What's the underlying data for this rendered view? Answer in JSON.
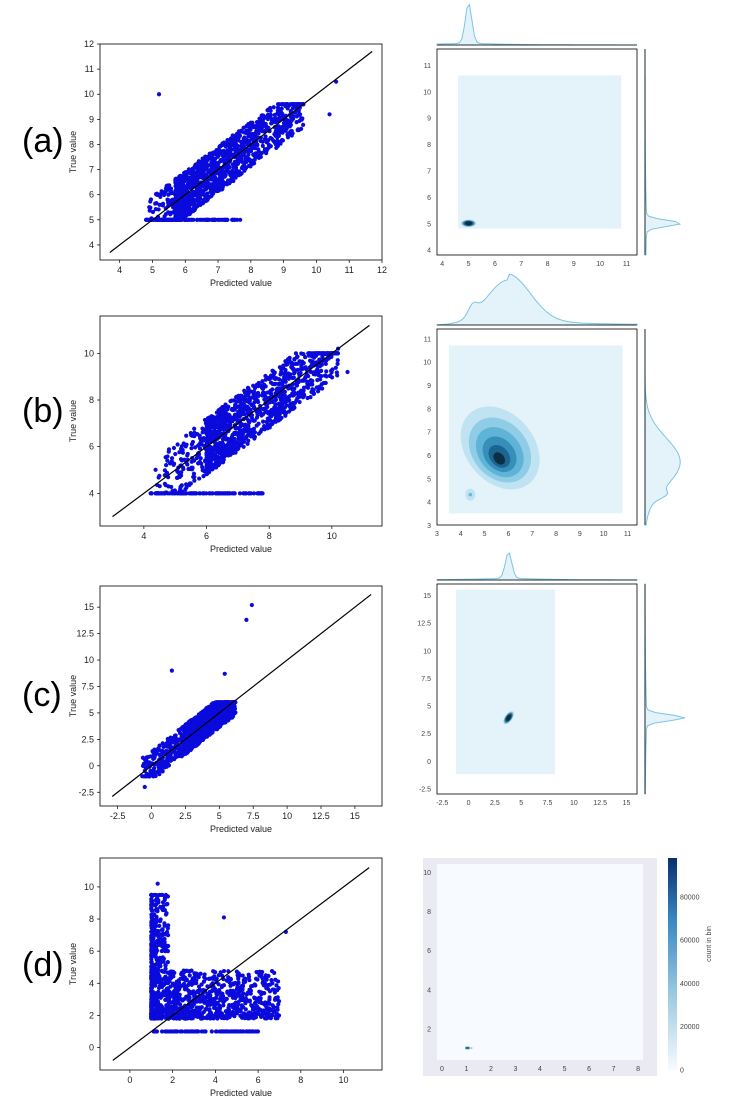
{
  "panel_labels": [
    "(a)",
    "(b)",
    "(c)",
    "(d)"
  ],
  "colors": {
    "scatter_point": "#0a0adc",
    "identity_line": "#000000",
    "kde_fill": "#e4f3fa",
    "kde_marginal_stroke": "#7ec4e0",
    "kde_dense": "#0b2f45",
    "hexbin_bg": "#eaeaf2",
    "hexbin_low": "#f7fbff",
    "hexbin_high": "#08306b"
  },
  "chart_data": [
    {
      "type": "scatter",
      "panel": "(a)",
      "xlabel": "Predicted value",
      "ylabel": "True value",
      "xlim": [
        3.4,
        12.0
      ],
      "ylim": [
        3.4,
        12.0
      ],
      "xticks": [
        4,
        5,
        6,
        7,
        8,
        9,
        10,
        11,
        12
      ],
      "yticks": [
        4,
        5,
        6,
        7,
        8,
        9,
        10,
        11,
        12
      ],
      "identity_line": [
        [
          3.7,
          3.7
        ],
        [
          11.7,
          11.7
        ]
      ],
      "cluster": {
        "x_range": [
          4.8,
          9.6
        ],
        "y_range": [
          5.0,
          9.6
        ],
        "floor": 5.0,
        "center": [
          5.7,
          5.8
        ]
      },
      "outliers": [
        [
          5.2,
          10.0
        ],
        [
          10.6,
          10.5
        ],
        [
          10.4,
          9.2
        ],
        [
          8.6,
          9.1
        ]
      ]
    },
    {
      "type": "heatmap",
      "subtype": "joint_kde",
      "panel": "(a)",
      "xlim": [
        3.8,
        11.4
      ],
      "ylim": [
        3.8,
        11.6
      ],
      "xticks": [
        4,
        5,
        6,
        7,
        8,
        9,
        10,
        11
      ],
      "yticks": [
        4,
        5,
        6,
        7,
        8,
        9,
        10,
        11
      ],
      "density_region": {
        "x": [
          4.6,
          10.8
        ],
        "y": [
          4.8,
          10.6
        ]
      },
      "peak": [
        5.0,
        5.0
      ],
      "marginal_x_peak": 5.0,
      "marginal_y_peak": 5.0
    },
    {
      "type": "scatter",
      "panel": "(b)",
      "xlabel": "Predicted value",
      "ylabel": "True value",
      "xlim": [
        2.6,
        11.6
      ],
      "ylim": [
        2.6,
        11.6
      ],
      "xticks": [
        4,
        6,
        8,
        10
      ],
      "yticks": [
        4,
        6,
        8,
        10
      ],
      "identity_line": [
        [
          3.0,
          3.0
        ],
        [
          11.2,
          11.2
        ]
      ],
      "cluster": {
        "x_range": [
          4.2,
          10.2
        ],
        "y_range": [
          4.0,
          10.0
        ],
        "floor": 4.0,
        "center": [
          6.0,
          6.0
        ]
      },
      "outliers": [
        [
          10.2,
          10.2
        ],
        [
          10.5,
          9.2
        ]
      ]
    },
    {
      "type": "heatmap",
      "subtype": "joint_kde",
      "panel": "(b)",
      "xlim": [
        3.0,
        11.4
      ],
      "ylim": [
        3.0,
        11.4
      ],
      "xticks": [
        3,
        4,
        5,
        6,
        7,
        8,
        9,
        10,
        11
      ],
      "yticks": [
        3,
        4,
        5,
        6,
        7,
        8,
        9,
        10,
        11
      ],
      "density_region": {
        "x": [
          3.5,
          10.8
        ],
        "y": [
          3.5,
          10.7
        ]
      },
      "peak": [
        5.6,
        5.7
      ],
      "secondary_peak": [
        4.4,
        4.3
      ],
      "marginal_x_peak": 6.0,
      "marginal_y_peak": 5.7
    },
    {
      "type": "scatter",
      "panel": "(c)",
      "xlabel": "Predicted value",
      "ylabel": "True value",
      "xlim": [
        -3.8,
        17.0
      ],
      "ylim": [
        -3.8,
        17.0
      ],
      "xticks": [
        -2.5,
        0.0,
        2.5,
        5.0,
        7.5,
        10.0,
        12.5,
        15.0
      ],
      "yticks": [
        -2.5,
        0.0,
        2.5,
        5.0,
        7.5,
        10.0,
        12.5,
        15.0
      ],
      "identity_line": [
        [
          -2.9,
          -2.9
        ],
        [
          16.2,
          16.2
        ]
      ],
      "cluster": {
        "x_range": [
          -0.8,
          6.2
        ],
        "y_range": [
          -1.0,
          6.0
        ],
        "floor": null,
        "center": [
          2.5,
          2.5
        ]
      },
      "outliers": [
        [
          7.4,
          15.2
        ],
        [
          7.0,
          13.8
        ],
        [
          5.4,
          8.7
        ],
        [
          1.5,
          9.0
        ],
        [
          -0.5,
          -2.0
        ]
      ]
    },
    {
      "type": "heatmap",
      "subtype": "joint_kde",
      "panel": "(c)",
      "xlim": [
        -3.0,
        16.0
      ],
      "ylim": [
        -3.0,
        16.0
      ],
      "xticks": [
        -2.5,
        0.0,
        2.5,
        5.0,
        7.5,
        10.0,
        12.5,
        15.0
      ],
      "yticks": [
        -2.5,
        0.0,
        2.5,
        5.0,
        7.5,
        10.0,
        12.5,
        15.0
      ],
      "density_region": {
        "x": [
          -1.2,
          8.2
        ],
        "y": [
          -1.2,
          15.5
        ]
      },
      "peak": [
        3.8,
        3.9
      ],
      "marginal_x_peak": 3.8,
      "marginal_y_peak": 3.9
    },
    {
      "type": "scatter",
      "panel": "(d)",
      "xlabel": "Predicted value",
      "ylabel": "True value",
      "xlim": [
        -1.4,
        11.8
      ],
      "ylim": [
        -1.4,
        11.8
      ],
      "xticks": [
        0,
        2,
        4,
        6,
        8,
        10
      ],
      "yticks": [
        0,
        2,
        4,
        6,
        8,
        10
      ],
      "identity_line": [
        [
          -0.8,
          -0.8
        ],
        [
          11.2,
          11.2
        ]
      ],
      "cluster": {
        "x_range": [
          1.0,
          7.0
        ],
        "y_range": [
          1.5,
          9.5
        ],
        "floor": 1.0,
        "center": [
          1.6,
          3.0
        ]
      },
      "outliers": [
        [
          1.3,
          10.2
        ],
        [
          7.3,
          7.2
        ],
        [
          4.4,
          8.1
        ]
      ]
    },
    {
      "type": "heatmap",
      "subtype": "hexbin",
      "panel": "(d)",
      "xlim": [
        -0.2,
        8.2
      ],
      "ylim": [
        0.4,
        10.4
      ],
      "xticks": [
        0,
        1,
        2,
        3,
        4,
        5,
        6,
        7,
        8
      ],
      "yticks": [
        2,
        4,
        6,
        8,
        10
      ],
      "peak": [
        1.0,
        1.0
      ],
      "colorbar": {
        "label": "count in bin",
        "range": [
          0,
          98000
        ],
        "ticks": [
          0,
          20000,
          40000,
          60000,
          80000
        ]
      }
    }
  ]
}
